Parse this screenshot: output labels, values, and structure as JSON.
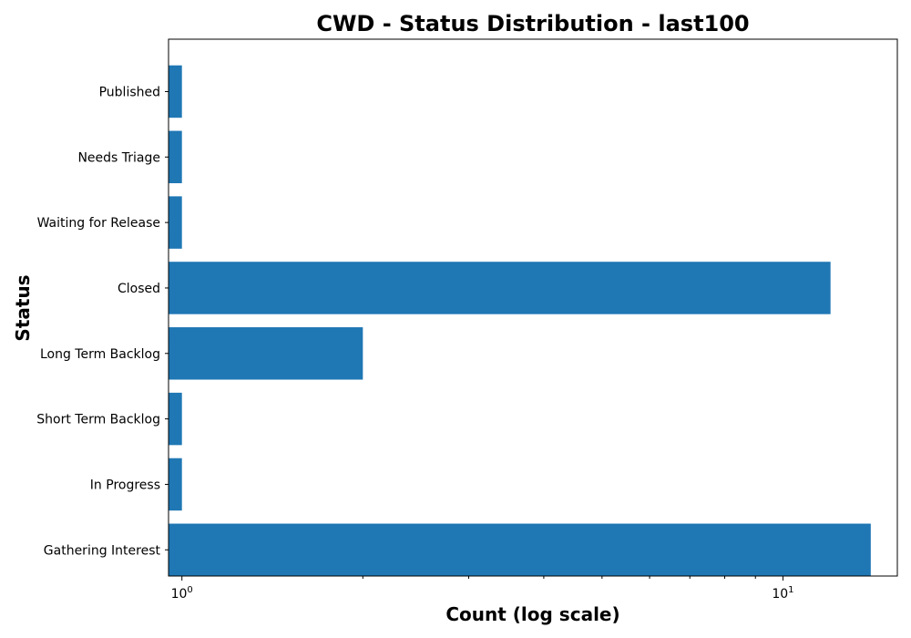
{
  "chart_data": {
    "type": "bar",
    "orientation": "horizontal",
    "title": "CWD - Status Distribution - last100",
    "xlabel": "Count (log scale)",
    "ylabel": "Status",
    "x_scale": "log",
    "xlim": [
      0.95,
      15.5
    ],
    "grid": false,
    "bar_color": "#1f77b4",
    "categories": [
      "Published",
      "Needs Triage",
      "Waiting for Release",
      "Closed",
      "Long Term Backlog",
      "Short Term Backlog",
      "In Progress",
      "Gathering Interest"
    ],
    "values": [
      1,
      1,
      1,
      12,
      2,
      1,
      1,
      14
    ],
    "x_ticks": [
      {
        "base": "10",
        "exp": "0",
        "value": 1
      },
      {
        "base": "10",
        "exp": "1",
        "value": 10
      }
    ]
  }
}
